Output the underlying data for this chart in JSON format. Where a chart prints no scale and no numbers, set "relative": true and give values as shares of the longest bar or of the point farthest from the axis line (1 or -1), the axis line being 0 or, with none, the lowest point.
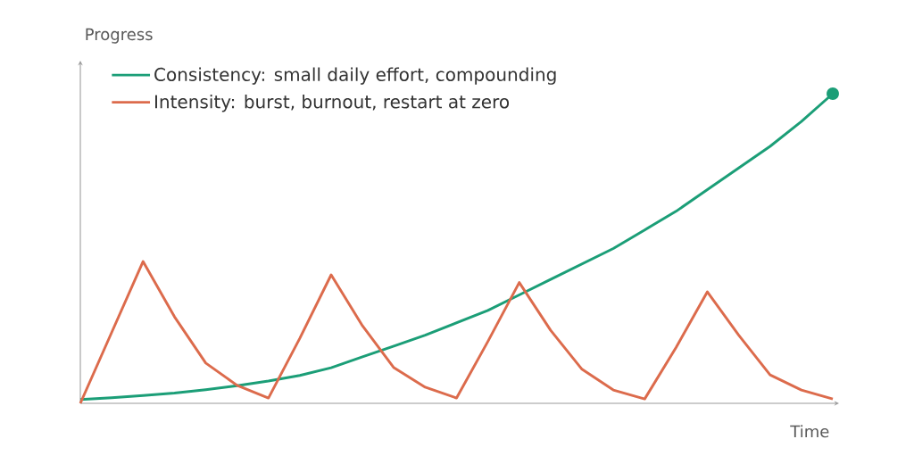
{
  "chart_data": {
    "type": "line",
    "relative": true,
    "xlabel": "Time",
    "ylabel": "Progress",
    "legend": "top left",
    "categories": [
      null,
      null,
      null,
      null,
      null,
      null,
      null,
      null,
      null,
      null,
      null,
      null,
      null,
      null,
      null,
      null,
      null,
      null,
      null,
      null,
      null,
      null,
      null,
      null,
      null
    ],
    "series": [
      {
        "name": "Consistency: small daily effort, compounding",
        "color": "#1b9e77",
        "values": [
          0.012,
          0.018,
          0.025,
          0.033,
          0.044,
          0.057,
          0.072,
          0.09,
          0.115,
          0.15,
          0.185,
          0.22,
          0.26,
          0.3,
          0.35,
          0.4,
          0.45,
          0.5,
          0.56,
          0.62,
          0.69,
          0.76,
          0.83,
          0.91,
          1
        ]
      },
      {
        "name": "Intensity: burst, burnout, restart at zero",
        "color": "#dc6b4c",
        "values": [
          0,
          0.229,
          0.458,
          0.28,
          0.13,
          0.058,
          0.017,
          0.21,
          0.415,
          0.25,
          0.115,
          0.052,
          0.017,
          0.2,
          0.39,
          0.236,
          0.11,
          0.043,
          0.014,
          0.18,
          0.36,
          0.22,
          0.092,
          0.043,
          0.014
        ]
      }
    ]
  }
}
